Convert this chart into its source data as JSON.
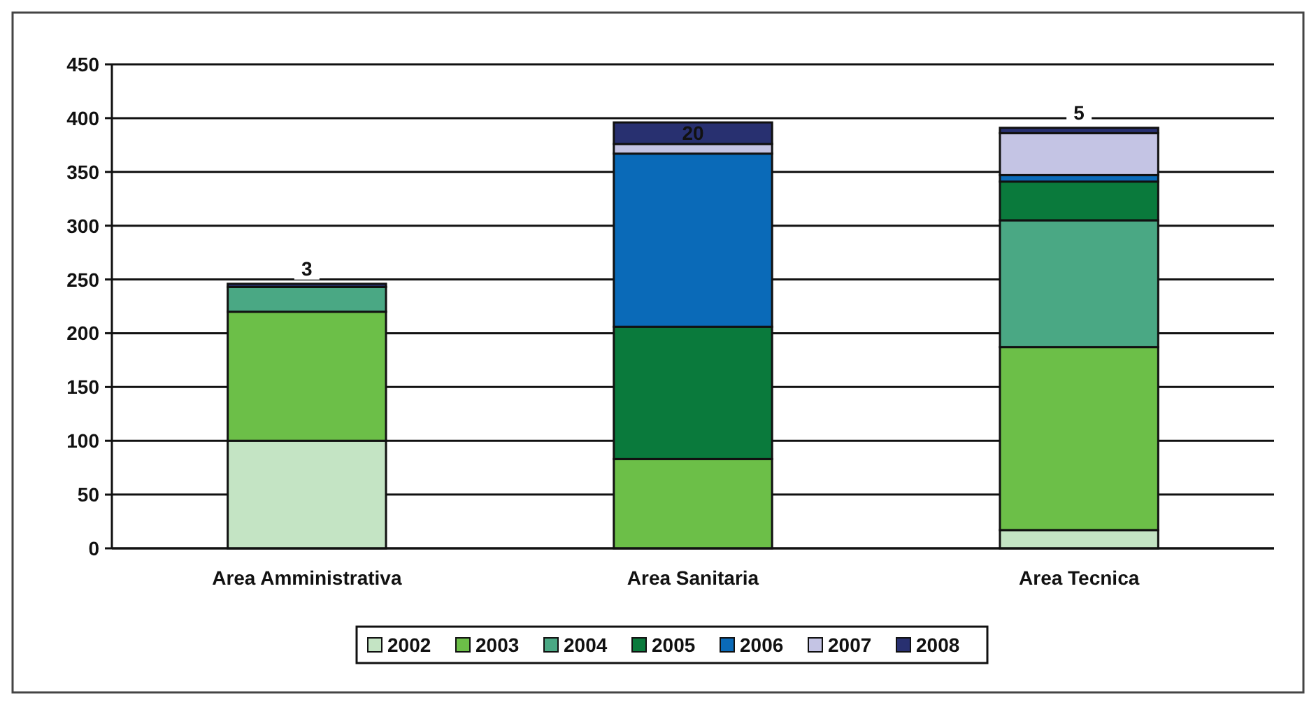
{
  "chart_data": {
    "type": "bar",
    "stacked": true,
    "categories": [
      "Area Amministrativa",
      "Area Sanitaria",
      "Area Tecnica"
    ],
    "series": [
      {
        "name": "2002",
        "color": "#c4e4c4",
        "values": [
          100,
          0,
          17
        ]
      },
      {
        "name": "2003",
        "color": "#6cbf48",
        "values": [
          120,
          83,
          170
        ]
      },
      {
        "name": "2004",
        "color": "#4aa884",
        "values": [
          23,
          0,
          118
        ]
      },
      {
        "name": "2005",
        "color": "#0a7a3c",
        "values": [
          0,
          123,
          36
        ]
      },
      {
        "name": "2006",
        "color": "#0a6ab8",
        "values": [
          0,
          161,
          6
        ]
      },
      {
        "name": "2007",
        "color": "#c4c4e4",
        "values": [
          0,
          9,
          39
        ]
      },
      {
        "name": "2008",
        "color": "#283070",
        "values": [
          3,
          20,
          5
        ],
        "value_labels": [
          "3",
          "20",
          "5"
        ]
      }
    ],
    "ylim": [
      0,
      450
    ],
    "yticks": [
      0,
      50,
      100,
      150,
      200,
      250,
      300,
      350,
      400,
      450
    ],
    "grid": "y",
    "legend": "bottom"
  }
}
